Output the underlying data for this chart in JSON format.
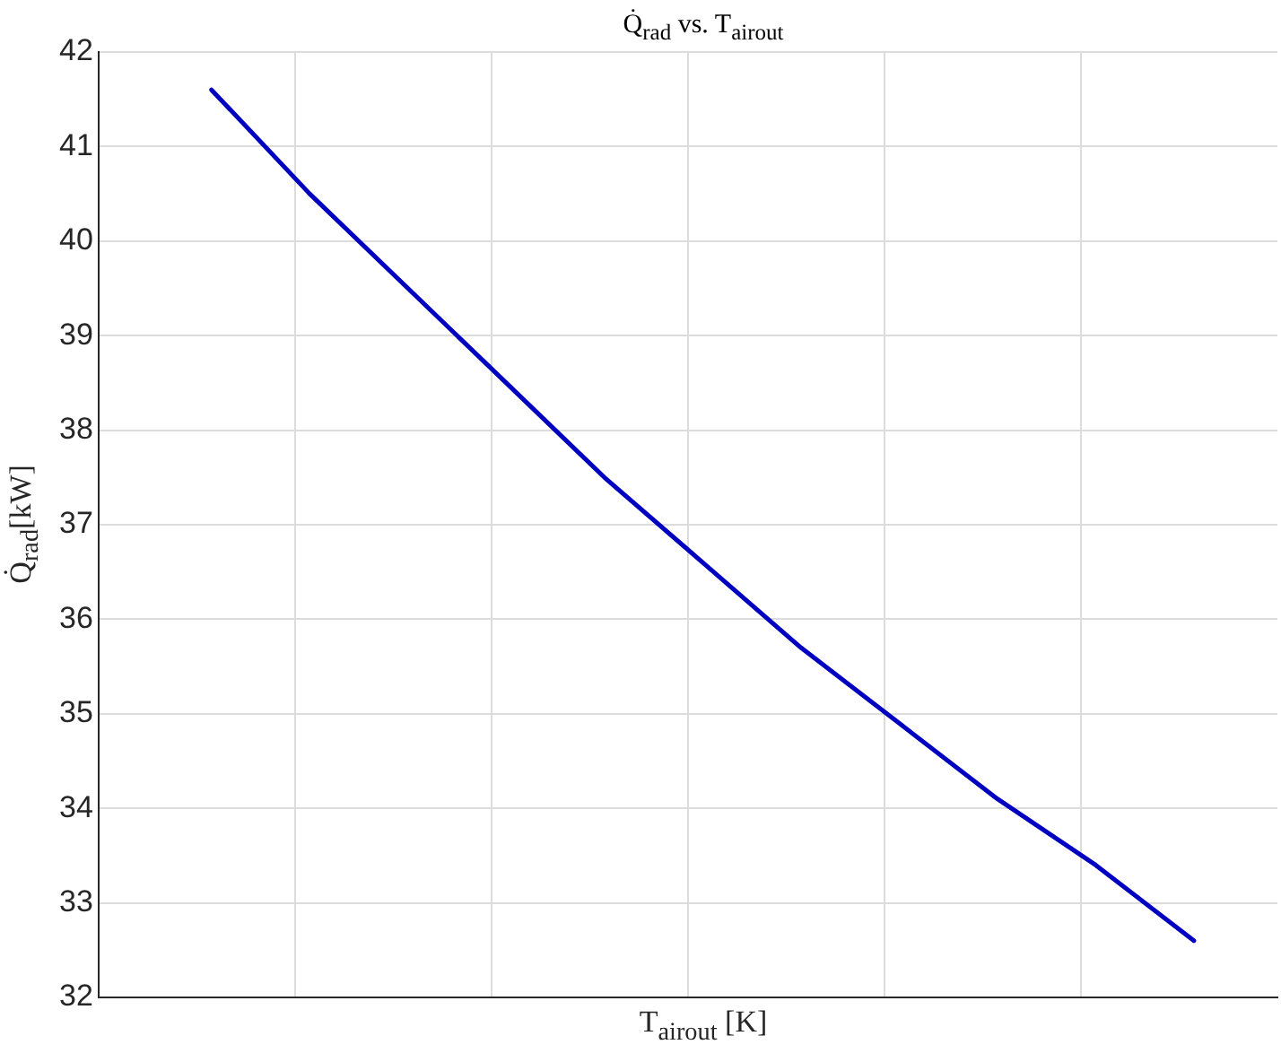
{
  "chart_data": {
    "type": "line",
    "title": "Q̇$_{rad}$ vs. T$_{airout}$",
    "xlabel": "T$_{airout}$ [K]",
    "ylabel": "Q̇$_{rad}$[kW]",
    "categories": [
      null,
      null,
      null,
      null,
      null,
      null,
      null,
      null,
      null,
      null,
      null
    ],
    "series": [
      {
        "color": "#0000c0",
        "values": [
          41.6,
          40.5,
          39.5,
          38.5,
          37.5,
          36.6,
          35.7,
          34.9,
          34.1,
          33.4,
          32.6
        ]
      }
    ],
    "ylim": [
      32,
      42
    ],
    "yticks": [
      32,
      33,
      34,
      35,
      36,
      37,
      38,
      39,
      40,
      41,
      42
    ],
    "grid": true,
    "marker": "none",
    "line_style": "solid"
  }
}
